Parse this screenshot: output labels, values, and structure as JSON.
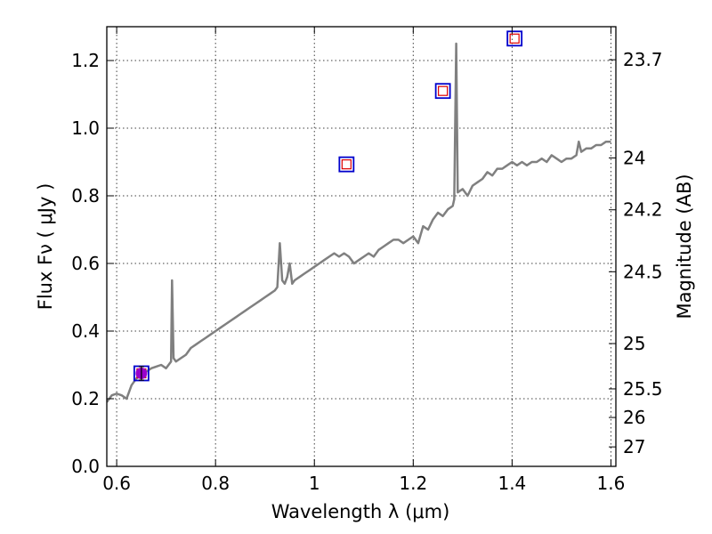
{
  "chart_data": {
    "type": "line",
    "xlabel": "Wavelength  λ (μm)",
    "ylabel": "Flux  Fν  ( μJy )",
    "y2label": "Magnitude (AB)",
    "xlim": [
      0.58,
      1.61
    ],
    "ylim": [
      0.0,
      1.3
    ],
    "grid": true,
    "x_ticks": [
      0.6,
      0.8,
      1.0,
      1.2,
      1.4,
      1.6
    ],
    "x_tick_labels": [
      "0.6",
      "0.8",
      "1",
      "1.2",
      "1.4",
      "1.6"
    ],
    "y_ticks": [
      0.0,
      0.2,
      0.4,
      0.6,
      0.8,
      1.0,
      1.2
    ],
    "y_tick_labels": [
      "0.0",
      "0.2",
      "0.4",
      "0.6",
      "0.8",
      "1.0",
      "1.2"
    ],
    "mag_ticks": [
      23.7,
      24,
      24.2,
      24.5,
      25,
      25.5,
      26,
      27
    ],
    "mag_tick_labels": [
      "23.7",
      "24",
      "24.2",
      "24.5",
      "25",
      "25.5",
      "26",
      "27"
    ],
    "colors": {
      "spectrum": "#808080",
      "model_box": "#0000cc",
      "model_inner": "#dd0000",
      "observed_point": "#9900cc"
    },
    "series": [
      {
        "kind": "spectrum",
        "x": [
          0.58,
          0.59,
          0.6,
          0.61,
          0.62,
          0.625,
          0.63,
          0.64,
          0.65,
          0.66,
          0.67,
          0.68,
          0.69,
          0.7,
          0.705,
          0.71,
          0.712,
          0.715,
          0.72,
          0.73,
          0.74,
          0.75,
          0.76,
          0.77,
          0.78,
          0.79,
          0.8,
          0.81,
          0.82,
          0.83,
          0.84,
          0.85,
          0.86,
          0.87,
          0.88,
          0.89,
          0.9,
          0.91,
          0.92,
          0.925,
          0.93,
          0.935,
          0.94,
          0.945,
          0.95,
          0.955,
          0.96,
          0.97,
          0.98,
          0.99,
          1.0,
          1.01,
          1.02,
          1.03,
          1.04,
          1.05,
          1.06,
          1.07,
          1.08,
          1.09,
          1.1,
          1.11,
          1.12,
          1.13,
          1.14,
          1.15,
          1.16,
          1.17,
          1.18,
          1.19,
          1.2,
          1.21,
          1.22,
          1.23,
          1.24,
          1.25,
          1.26,
          1.27,
          1.28,
          1.283,
          1.287,
          1.29,
          1.3,
          1.31,
          1.32,
          1.33,
          1.34,
          1.35,
          1.36,
          1.37,
          1.38,
          1.39,
          1.4,
          1.41,
          1.42,
          1.43,
          1.44,
          1.45,
          1.46,
          1.47,
          1.48,
          1.49,
          1.5,
          1.51,
          1.52,
          1.53,
          1.535,
          1.54,
          1.55,
          1.56,
          1.57,
          1.58,
          1.59,
          1.6
        ],
        "y": [
          0.19,
          0.21,
          0.215,
          0.21,
          0.2,
          0.22,
          0.24,
          0.26,
          0.27,
          0.28,
          0.29,
          0.295,
          0.3,
          0.29,
          0.3,
          0.31,
          0.55,
          0.32,
          0.31,
          0.32,
          0.33,
          0.35,
          0.36,
          0.37,
          0.38,
          0.39,
          0.4,
          0.41,
          0.42,
          0.43,
          0.44,
          0.45,
          0.46,
          0.47,
          0.48,
          0.49,
          0.5,
          0.51,
          0.52,
          0.53,
          0.66,
          0.55,
          0.54,
          0.56,
          0.6,
          0.54,
          0.55,
          0.56,
          0.57,
          0.58,
          0.59,
          0.6,
          0.61,
          0.62,
          0.63,
          0.62,
          0.63,
          0.62,
          0.6,
          0.61,
          0.62,
          0.63,
          0.62,
          0.64,
          0.65,
          0.66,
          0.67,
          0.67,
          0.66,
          0.67,
          0.68,
          0.66,
          0.71,
          0.7,
          0.73,
          0.75,
          0.74,
          0.76,
          0.77,
          0.79,
          1.25,
          0.81,
          0.82,
          0.8,
          0.83,
          0.84,
          0.85,
          0.87,
          0.86,
          0.88,
          0.88,
          0.89,
          0.9,
          0.89,
          0.9,
          0.89,
          0.9,
          0.9,
          0.91,
          0.9,
          0.92,
          0.91,
          0.9,
          0.91,
          0.91,
          0.92,
          0.96,
          0.93,
          0.94,
          0.94,
          0.95,
          0.95,
          0.96,
          0.96
        ]
      },
      {
        "kind": "model_photometry",
        "x": [
          0.65,
          1.065,
          1.26,
          1.405
        ],
        "y": [
          0.275,
          0.893,
          1.11,
          1.265
        ]
      },
      {
        "kind": "observed_photometry",
        "x": [
          0.65
        ],
        "y": [
          0.275
        ],
        "yerr": [
          0.02
        ]
      }
    ]
  }
}
